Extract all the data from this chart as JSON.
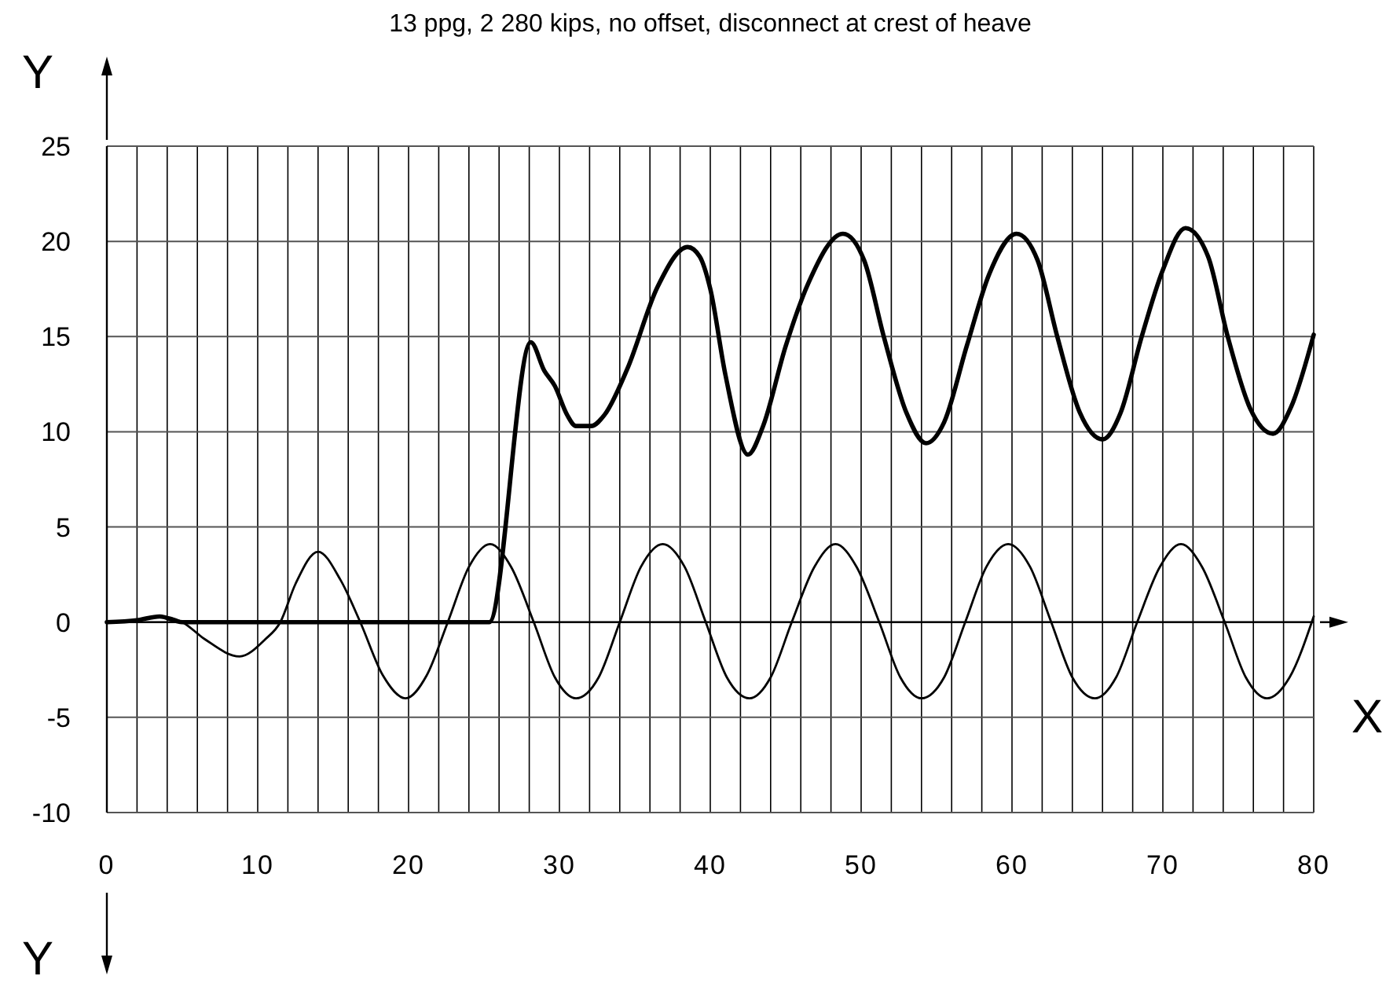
{
  "chart_data": {
    "type": "line",
    "title": "13 ppg, 2 280 kips, no offset, disconnect at crest of heave",
    "xlabel": "X",
    "ylabel": "Y",
    "annotations": [
      "Y"
    ],
    "xlim": [
      0,
      80
    ],
    "ylim": [
      -10,
      25
    ],
    "xticks": [
      0,
      {
        "value": 2,
        "label": null
      },
      {
        "value": 4,
        "label": null
      },
      {
        "value": 6,
        "label": null
      },
      {
        "value": 8,
        "label": null
      },
      10,
      {
        "value": 12,
        "label": null
      },
      {
        "value": 14,
        "label": null
      },
      {
        "value": 16,
        "label": null
      },
      {
        "value": 18,
        "label": null
      },
      20,
      {
        "value": 22,
        "label": null
      },
      {
        "value": 24,
        "label": null
      },
      {
        "value": 26,
        "label": null
      },
      {
        "value": 28,
        "label": null
      },
      30,
      {
        "value": 32,
        "label": null
      },
      {
        "value": 34,
        "label": null
      },
      {
        "value": 36,
        "label": null
      },
      {
        "value": 38,
        "label": null
      },
      40,
      {
        "value": 42,
        "label": null
      },
      {
        "value": 44,
        "label": null
      },
      {
        "value": 46,
        "label": null
      },
      {
        "value": 48,
        "label": null
      },
      50,
      {
        "value": 52,
        "label": null
      },
      {
        "value": 54,
        "label": null
      },
      {
        "value": 56,
        "label": null
      },
      {
        "value": 58,
        "label": null
      },
      60,
      {
        "value": 62,
        "label": null
      },
      {
        "value": 64,
        "label": null
      },
      {
        "value": 66,
        "label": null
      },
      {
        "value": 68,
        "label": null
      },
      70,
      {
        "value": 72,
        "label": null
      },
      {
        "value": 74,
        "label": null
      },
      {
        "value": 76,
        "label": null
      },
      {
        "value": 78,
        "label": null
      },
      80
    ],
    "yticks": [
      -10,
      -5,
      0,
      5,
      10,
      15,
      20,
      25
    ],
    "grid": true,
    "marker": "none",
    "line_style": "solid",
    "series": [
      {
        "color": "#000000",
        "x": [
          0,
          2,
          3.5,
          5,
          6.5,
          8.8,
          10.5,
          11.5,
          12.5,
          14.0,
          15.5,
          16.8,
          18.3,
          19.8,
          21.2,
          22.6,
          24.0,
          25.4,
          26.8,
          28.3,
          29.7,
          31.1,
          32.6,
          34.0,
          35.4,
          36.85,
          38.3,
          39.7,
          41.1,
          42.6,
          44.0,
          45.4,
          46.9,
          48.3,
          49.7,
          51.2,
          52.6,
          54.0,
          55.5,
          56.9,
          58.3,
          59.75,
          61.2,
          62.6,
          64.0,
          65.5,
          66.9,
          68.3,
          69.8,
          71.2,
          72.6,
          74.1,
          75.5,
          76.9,
          78.4,
          80
        ],
        "values": [
          0,
          0.1,
          0.3,
          0,
          -0.9,
          -1.8,
          -0.9,
          0,
          2,
          3.7,
          2.2,
          0,
          -2.8,
          -4,
          -2.8,
          0,
          2.9,
          4.1,
          2.9,
          0,
          -2.9,
          -4,
          -2.9,
          0,
          2.9,
          4.1,
          2.9,
          0,
          -2.9,
          -4,
          -2.9,
          0,
          2.9,
          4.1,
          2.9,
          0,
          -2.9,
          -4,
          -2.9,
          0,
          2.9,
          4.1,
          2.9,
          0,
          -2.9,
          -4,
          -2.9,
          0,
          2.9,
          4.1,
          2.9,
          0,
          -2.9,
          -4,
          -2.9,
          0.3
        ]
      },
      {
        "color": "#000000",
        "x": [
          0,
          2,
          3.5,
          5,
          25.35,
          28.1,
          29.0,
          29.7,
          30.5,
          31.1,
          32.1,
          33.0,
          34.5,
          36.5,
          38.5,
          39.3,
          40,
          41,
          42.5,
          43.5,
          45,
          46.5,
          48.8,
          50.2,
          51.5,
          53,
          54.3,
          55.5,
          57,
          58.5,
          60.3,
          61.7,
          63,
          64.5,
          66.0,
          67.2,
          68.6,
          70,
          71.5,
          73,
          74.3,
          75.8,
          77.3,
          78.5,
          80
        ],
        "values": [
          0,
          0.1,
          0.3,
          0,
          0,
          14.7,
          13.2,
          12.4,
          10.9,
          10.3,
          10.3,
          10.9,
          13.3,
          17.6,
          19.7,
          19.2,
          17.5,
          13,
          8.8,
          10.3,
          14.5,
          17.8,
          20.4,
          19,
          15,
          11,
          9.4,
          10.5,
          14.5,
          18.3,
          20.4,
          19,
          15,
          11,
          9.6,
          11,
          15,
          18.5,
          20.7,
          19.2,
          15,
          11.2,
          9.9,
          11.3,
          15.1
        ]
      }
    ]
  }
}
